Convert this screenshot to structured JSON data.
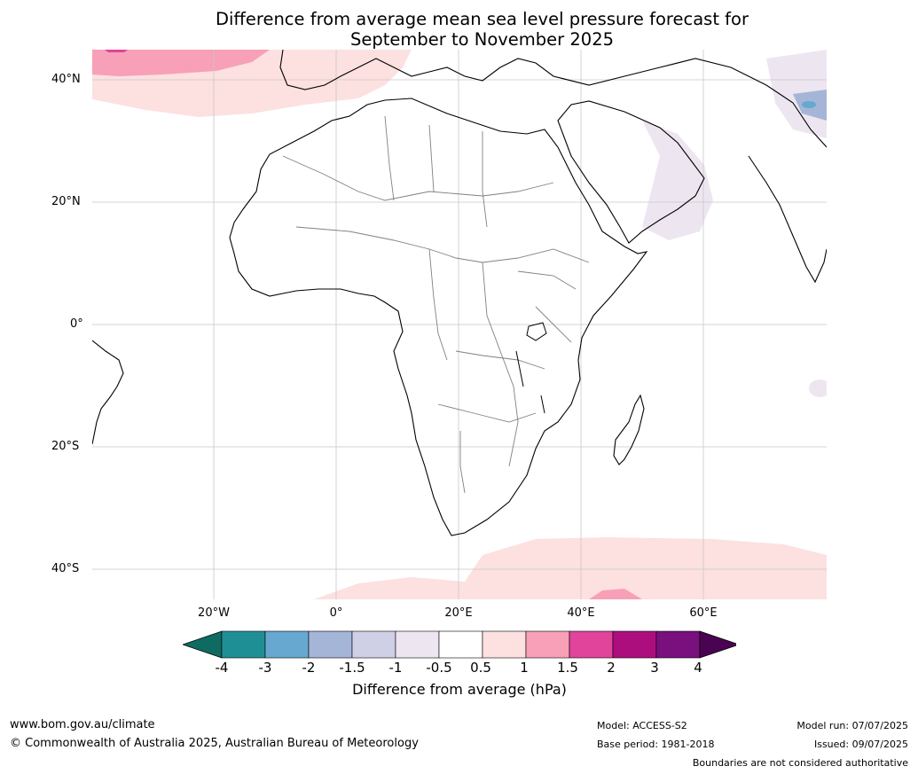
{
  "title_line1": "Difference from average mean sea level pressure forecast for",
  "title_line2": "September to November 2025",
  "lat_labels": [
    "40°N",
    "20°N",
    "0°",
    "20°S",
    "40°S"
  ],
  "lon_labels": [
    "20°W",
    "0°",
    "20°E",
    "40°E",
    "60°E"
  ],
  "colorbar": {
    "title": "Difference from average (hPa)",
    "ticks": [
      "-4",
      "-3",
      "-2",
      "-1.5",
      "-1",
      "-0.5",
      "0.5",
      "1",
      "1.5",
      "2",
      "3",
      "4"
    ],
    "colors": [
      "#0f6b61",
      "#1f8f96",
      "#67a8d0",
      "#a5b5d8",
      "#cfd0e6",
      "#ede6f0",
      "#ffffff",
      "#fde0e0",
      "#f7a0b8",
      "#e0449b",
      "#ad0e7e",
      "#7a0f7e",
      "#4a0352"
    ]
  },
  "footer": {
    "website": "www.bom.gov.au/climate",
    "copyright": "© Commonwealth of Australia 2025, Australian Bureau of Meteorology",
    "model": "Model: ACCESS-S2",
    "base_period": "Base period: 1981-2018",
    "model_run": "Model run: 07/07/2025",
    "issued": "Issued: 09/07/2025",
    "disclaimer": "Boundaries are not considered authoritative"
  }
}
